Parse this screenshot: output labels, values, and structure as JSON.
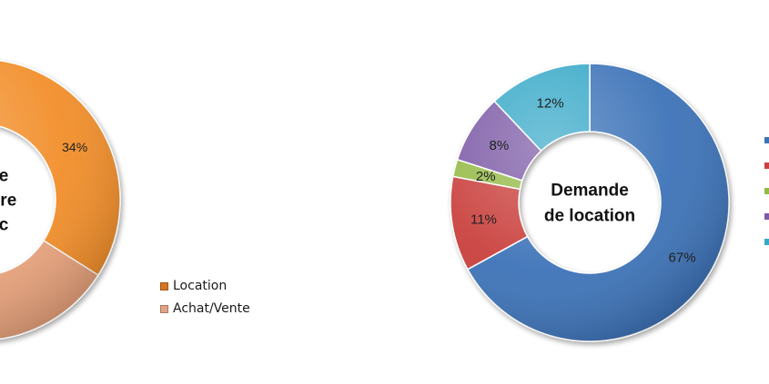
{
  "chart_data": [
    {
      "type": "donut",
      "title_lines": [
        "e",
        "ere",
        "c"
      ],
      "series": [
        {
          "name": "Location",
          "value": 34,
          "label": "34%",
          "color": "#f28e2b"
        },
        {
          "name": "Achat/Vente",
          "value": 66,
          "label": "",
          "color": "#e9a37b"
        }
      ],
      "legend_position": "right"
    },
    {
      "type": "donut",
      "title_lines": [
        "Demande",
        "de location"
      ],
      "series": [
        {
          "value": 67,
          "label": "67%",
          "color": "#3e73b8"
        },
        {
          "value": 11,
          "label": "11%",
          "color": "#c9413e"
        },
        {
          "value": 2,
          "label": "2%",
          "color": "#95ba46"
        },
        {
          "value": 8,
          "label": "8%",
          "color": "#7b5aa6"
        },
        {
          "value": 12,
          "label": "12%",
          "color": "#38a9c8"
        }
      ],
      "legend_position": "right"
    }
  ],
  "legend_left": [
    {
      "label": "Location",
      "color": "#d4741f"
    },
    {
      "label": "Achat/Vente",
      "color": "#e0a384"
    }
  ],
  "legend_right_colors": [
    "#3e73b8",
    "#c9413e",
    "#95ba46",
    "#7b5aa6",
    "#38a9c8"
  ]
}
